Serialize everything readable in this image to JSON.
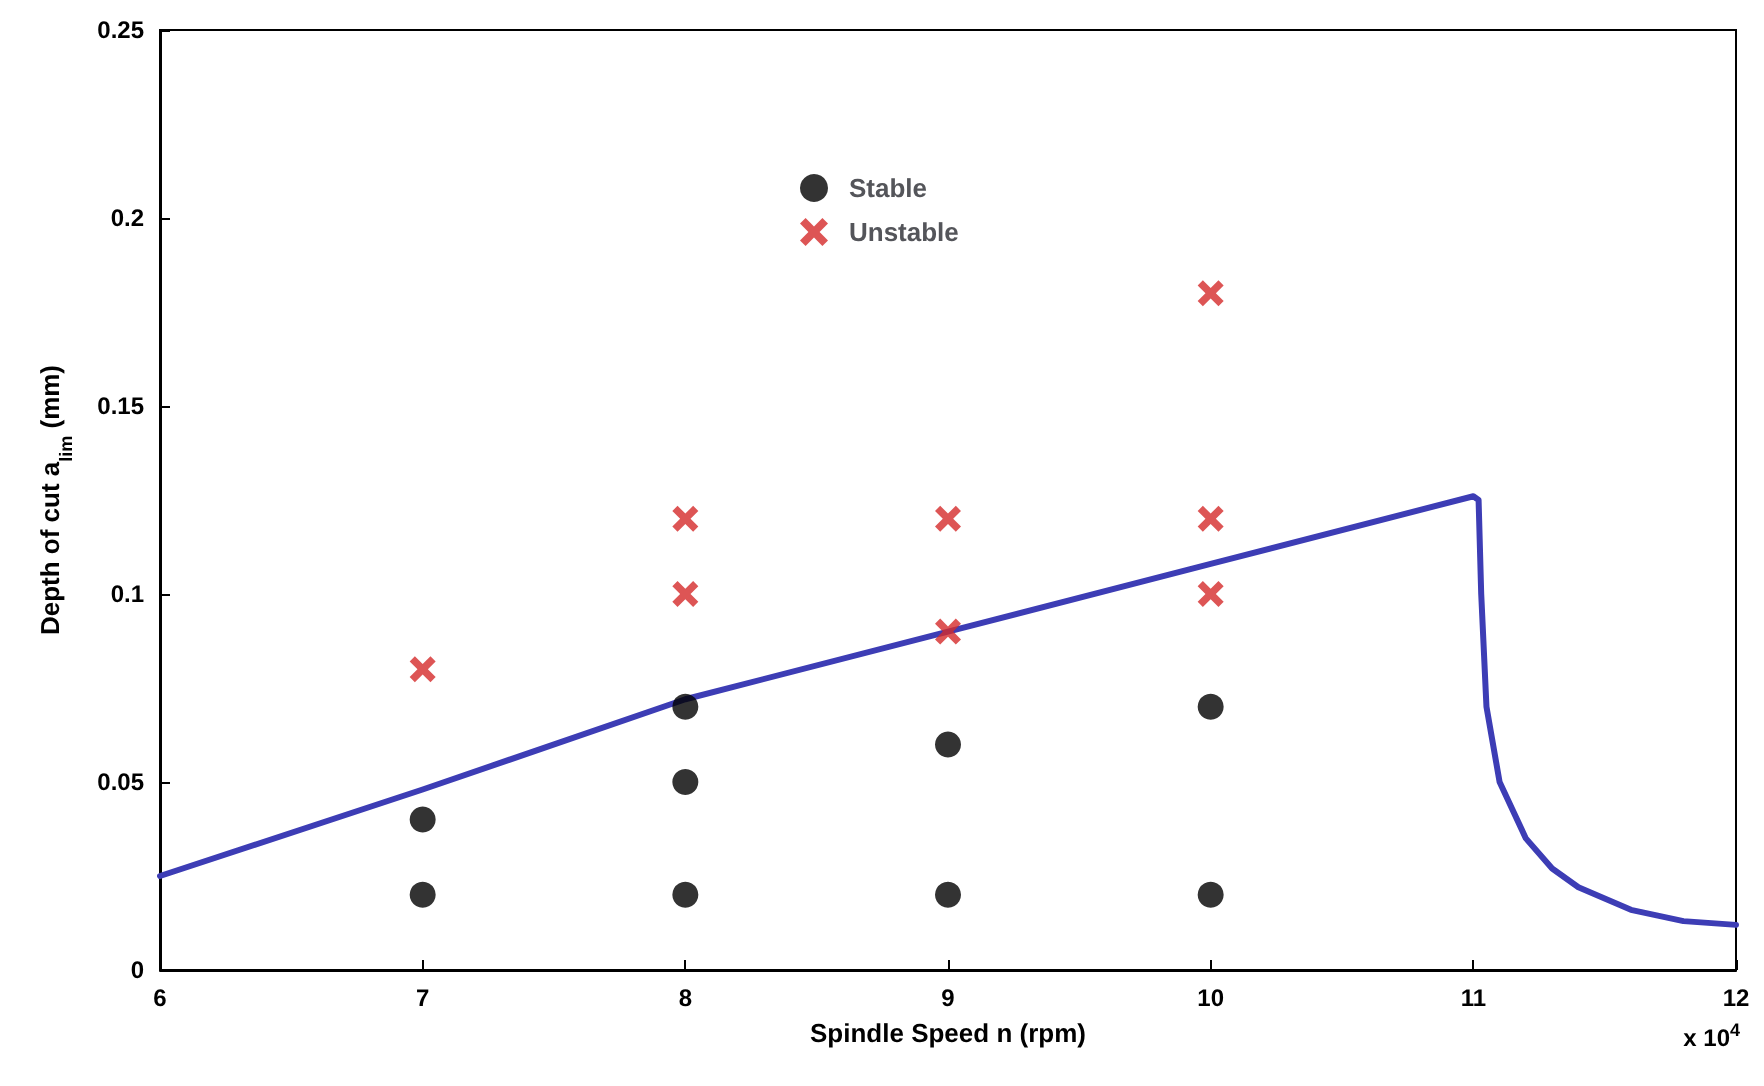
{
  "chart_data": {
    "type": "scatter",
    "xlabel": "Spindle Speed n (rpm)",
    "ylabel": "Depth of cut a$_{lim}$ (mm)",
    "annotations": [
      "x 10$^{4}$"
    ],
    "xlim": [
      6,
      12
    ],
    "xticks": [
      6,
      7,
      8,
      9,
      10,
      11,
      12
    ],
    "ylim": [
      0,
      0.25
    ],
    "yticks": [
      0,
      0.05,
      0.1,
      0.15,
      0.2,
      0.25
    ],
    "grid": false,
    "legend": "top",
    "series": [
      {
        "name": "Stable",
        "color": "#000000",
        "marker": "circle",
        "x": [
          7,
          7,
          8,
          8,
          8,
          9,
          9,
          10,
          10
        ],
        "values": [
          0.02,
          0.04,
          0.02,
          0.05,
          0.07,
          0.02,
          0.06,
          0.02,
          0.07
        ]
      },
      {
        "name": "Unstable",
        "color": "#d42a2a",
        "marker": "cross",
        "x": [
          7,
          8,
          8,
          9,
          9,
          10,
          10,
          10
        ],
        "values": [
          0.08,
          0.1,
          0.12,
          0.09,
          0.12,
          0.1,
          0.12,
          0.18
        ]
      },
      {
        "type": "line",
        "color": "#3d3db5",
        "marker": "none",
        "x": [
          6,
          7,
          8,
          9,
          10,
          11,
          11.02,
          11.03,
          11.05,
          11.1,
          11.2,
          11.3,
          11.4,
          11.6,
          11.8,
          12
        ],
        "values": [
          0.025,
          0.048,
          0.072,
          0.09,
          0.108,
          0.126,
          0.125,
          0.1,
          0.07,
          0.05,
          0.035,
          0.027,
          0.022,
          0.016,
          0.013,
          0.012
        ]
      }
    ]
  }
}
